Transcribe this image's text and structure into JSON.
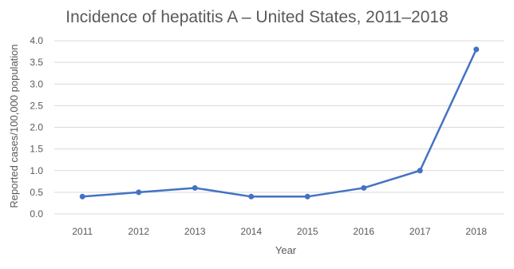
{
  "chart_data": {
    "type": "line",
    "title": "Incidence of hepatitis A – United States, 2011–2018",
    "xlabel": "Year",
    "ylabel": "Reported cases/100,000 population",
    "categories": [
      "2011",
      "2012",
      "2013",
      "2014",
      "2015",
      "2016",
      "2017",
      "2018"
    ],
    "series": [
      {
        "values": [
          0.4,
          0.5,
          0.6,
          0.4,
          0.4,
          0.6,
          1.0,
          3.8
        ]
      }
    ],
    "ylim": [
      0,
      4.0
    ],
    "yticks": [
      "0.0",
      "0.5",
      "1.0",
      "1.5",
      "2.0",
      "2.5",
      "3.0",
      "3.5",
      "4.0"
    ],
    "grid": "horizontal",
    "legend": "none",
    "colors": {
      "series": "#4472c4",
      "grid": "#d9d9d9",
      "text": "#595959"
    }
  }
}
